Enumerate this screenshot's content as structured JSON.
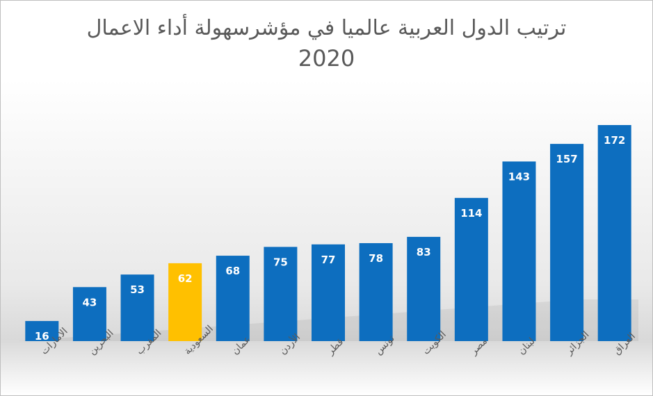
{
  "chart_data": {
    "type": "bar",
    "title": "ترتيب الدول العربية عالميا في مؤشرسهولة أداء الاعمال",
    "subtitle": "2020",
    "categories": [
      "الامارات",
      "البحرين",
      "المغرب",
      "السعودية",
      "عمان",
      "الأردن",
      "قطر",
      "تونس",
      "الكويت",
      "مصر",
      "لبنان",
      "الجزائر",
      "العراق"
    ],
    "values": [
      16,
      43,
      53,
      62,
      68,
      75,
      77,
      78,
      83,
      114,
      143,
      157,
      172
    ],
    "highlight_category": "السعودية",
    "ylim": [
      0,
      172
    ],
    "grid": false,
    "legend": "none",
    "colors": {
      "bar": "#0d6ebf",
      "highlight": "#ffc000",
      "label": "#ffffff",
      "tick": "#595959",
      "title": "#595959"
    }
  }
}
